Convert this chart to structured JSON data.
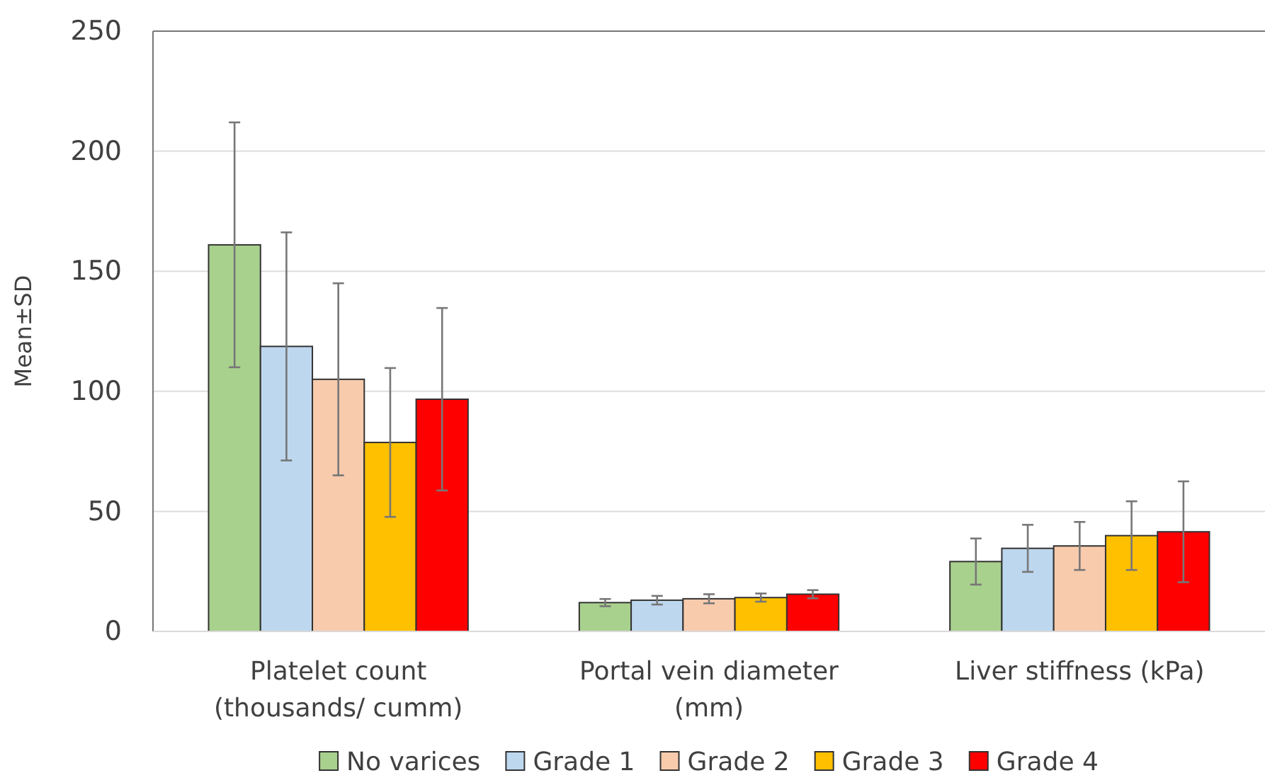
{
  "chart_data": {
    "type": "bar",
    "ylabel": "Mean±SD",
    "categories": [
      "Platelet count (thousands/ cumm)",
      "Portal vein diameter (mm)",
      "Liver stiffness (kPa)"
    ],
    "series": [
      {
        "name": "No varices",
        "color": "#a9d18e",
        "values": [
          161,
          12.0,
          29.1
        ],
        "errors": [
          51,
          1.5,
          9.6
        ]
      },
      {
        "name": "Grade 1",
        "color": "#bdd7ee",
        "values": [
          118.7,
          13.0,
          34.6
        ],
        "errors": [
          47.5,
          1.8,
          9.8
        ]
      },
      {
        "name": "Grade 2",
        "color": "#f8cbad",
        "values": [
          105,
          13.6,
          35.6
        ],
        "errors": [
          40,
          1.9,
          10
        ]
      },
      {
        "name": "Grade 3",
        "color": "#ffc000",
        "values": [
          78.7,
          14.1,
          39.9
        ],
        "errors": [
          31,
          1.7,
          14.3
        ]
      },
      {
        "name": "Grade 4",
        "color": "#ff0000",
        "values": [
          96.7,
          15.5,
          41.5
        ],
        "errors": [
          38,
          1.7,
          21
        ]
      }
    ],
    "ylim": [
      0,
      250
    ],
    "yticks": [
      0,
      50,
      100,
      150,
      200,
      250
    ],
    "grid": "y",
    "legend": "bottom"
  }
}
